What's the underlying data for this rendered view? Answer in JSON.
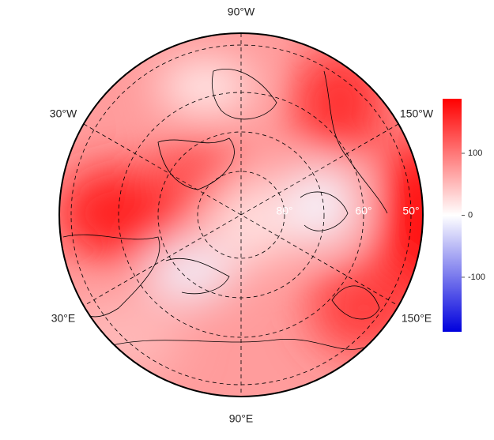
{
  "map": {
    "longitude_labels": [
      "90°W",
      "30°W",
      "150°W",
      "30°E",
      "150°E",
      "90°E"
    ],
    "latitude_labels": [
      "80°",
      "60°",
      "50°"
    ],
    "colorbar": {
      "lim": [
        -188,
        188
      ],
      "ticks": [
        100,
        0,
        -100
      ],
      "colors": [
        "#0000dd",
        "#ffffff",
        "#ff0000"
      ]
    }
  }
}
